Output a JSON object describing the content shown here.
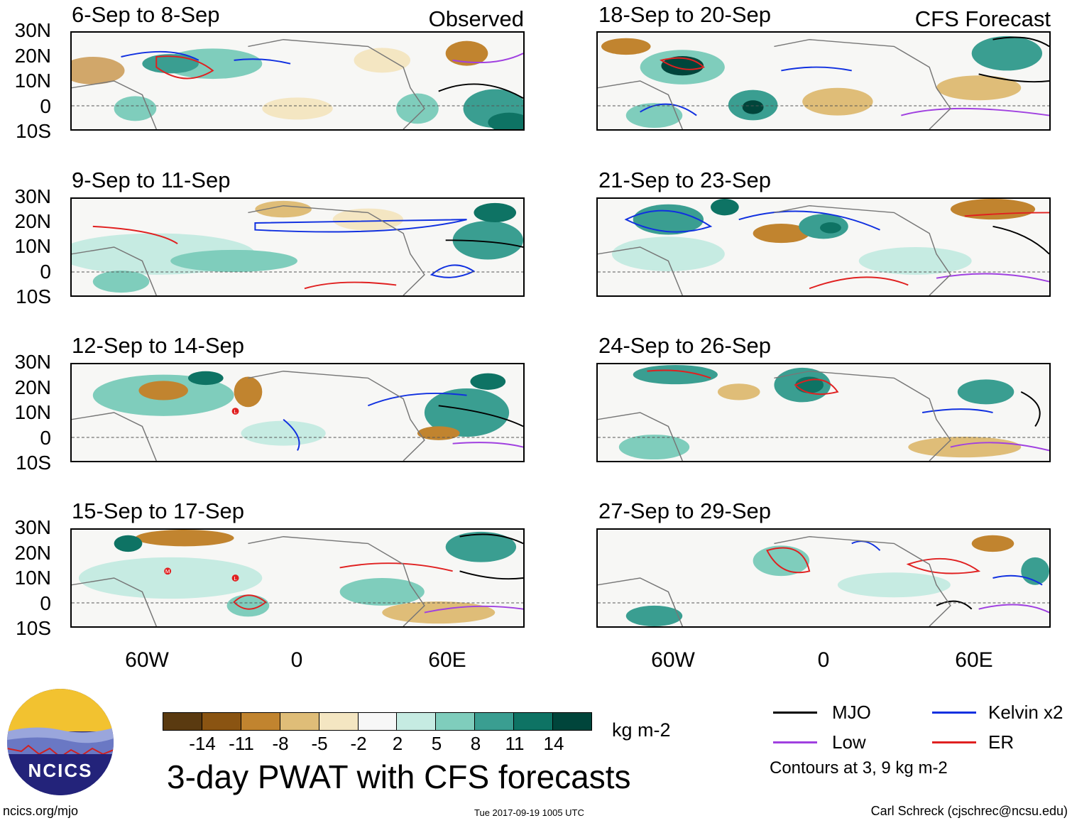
{
  "panels_left": [
    {
      "title": "6-Sep to 8-Sep",
      "label": "Observed"
    },
    {
      "title": "9-Sep to 11-Sep",
      "label": ""
    },
    {
      "title": "12-Sep to 14-Sep",
      "label": ""
    },
    {
      "title": "15-Sep to 17-Sep",
      "label": ""
    }
  ],
  "panels_right": [
    {
      "title": "18-Sep to 20-Sep",
      "label": "CFS Forecast"
    },
    {
      "title": "21-Sep to 23-Sep",
      "label": ""
    },
    {
      "title": "24-Sep to 26-Sep",
      "label": ""
    },
    {
      "title": "27-Sep to 29-Sep",
      "label": ""
    }
  ],
  "lat_labels": [
    "30N",
    "20N",
    "10N",
    "0",
    "10S"
  ],
  "lon_labels": [
    "60W",
    "0",
    "60E"
  ],
  "colorbar": {
    "colors": [
      "#5a3a10",
      "#8a5412",
      "#c1842f",
      "#dfbd78",
      "#f4e6c2",
      "#f7f7f7",
      "#c6ebe2",
      "#7fcdbc",
      "#3a9e91",
      "#0e7364",
      "#00453b"
    ],
    "ticks": [
      "-14",
      "-11",
      "-8",
      "-5",
      "-2",
      "2",
      "5",
      "8",
      "11",
      "14"
    ],
    "units": "kg m-2"
  },
  "title": "3-day PWAT with CFS forecasts",
  "legend": {
    "items": [
      {
        "label": "MJO",
        "color": "#000000"
      },
      {
        "label": "Kelvin x2",
        "color": "#1030e0"
      },
      {
        "label": "Low",
        "color": "#a040e0"
      },
      {
        "label": "ER",
        "color": "#e02020"
      }
    ],
    "note": "Contours at 3, 9 kg m-2"
  },
  "logo_text": "NCICS",
  "footer": {
    "url": "ncics.org/mjo",
    "timestamp": "Tue 2017-09-19 1005 UTC",
    "credit": "Carl Schreck (cjschrec@ncsu.edu)"
  },
  "storm_markers": [
    "L",
    "M"
  ]
}
